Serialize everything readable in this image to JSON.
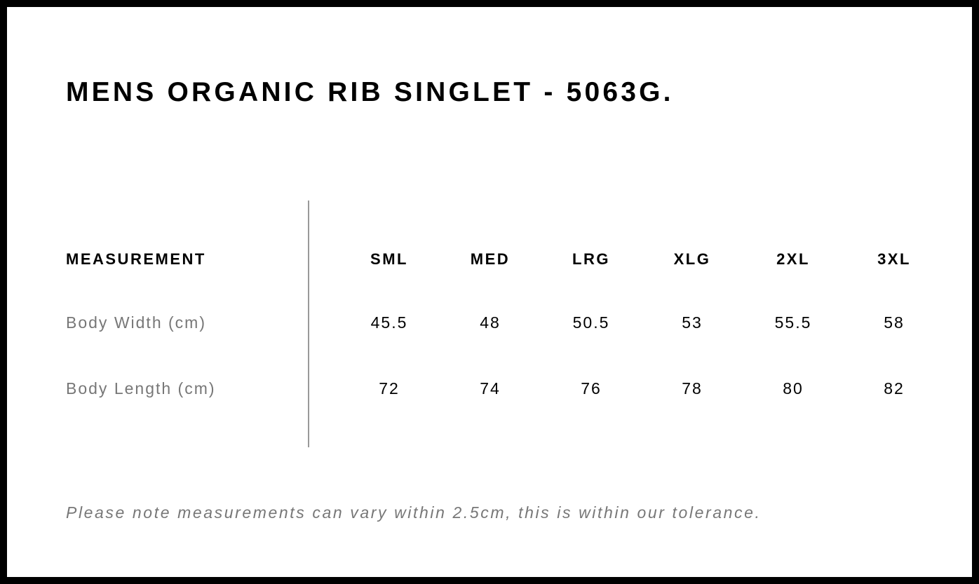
{
  "title": "MENS ORGANIC RIB SINGLET - 5063G.",
  "table": {
    "header": "MEASUREMENT",
    "sizes": [
      "SML",
      "MED",
      "LRG",
      "XLG",
      "2XL",
      "3XL"
    ],
    "rows": [
      {
        "label": "Body Width (cm)",
        "values": [
          "45.5",
          "48",
          "50.5",
          "53",
          "55.5",
          "58"
        ]
      },
      {
        "label": "Body Length (cm)",
        "values": [
          "72",
          "74",
          "76",
          "78",
          "80",
          "82"
        ]
      }
    ]
  },
  "note": "Please note measurements can vary within 2.5cm, this is within our tolerance."
}
